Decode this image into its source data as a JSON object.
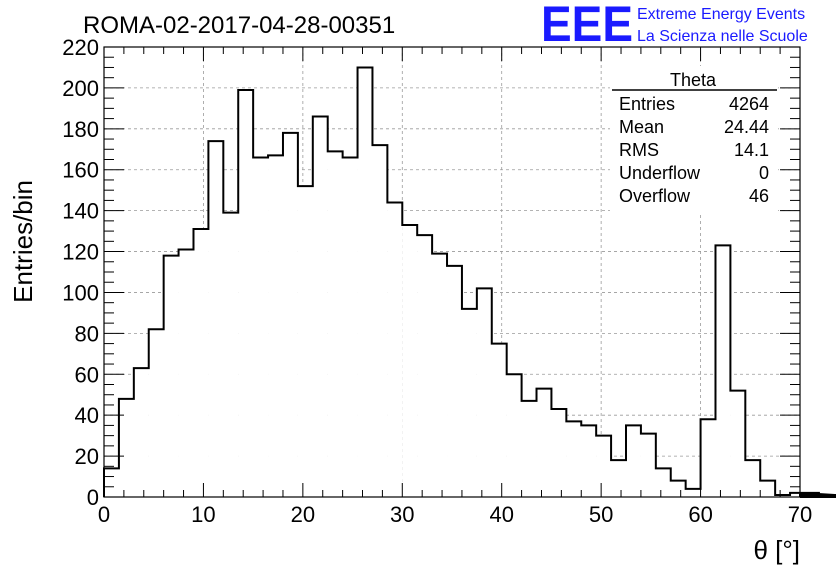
{
  "chart_data": {
    "type": "bar",
    "title": "ROMA-02-2017-04-28-00351",
    "xlabel": "θ [°]",
    "ylabel": "Entries/bin",
    "xlim": [
      0,
      70
    ],
    "ylim": [
      0,
      220
    ],
    "x_ticks": [
      "0",
      "10",
      "20",
      "30",
      "40",
      "50",
      "60",
      "70"
    ],
    "y_ticks": [
      "0",
      "20",
      "40",
      "60",
      "80",
      "100",
      "120",
      "140",
      "160",
      "180",
      "200",
      "220"
    ],
    "grid": true,
    "bin_width": 1.5,
    "bin_edges_start": 0,
    "values": [
      14,
      48,
      63,
      82,
      118,
      121,
      131,
      174,
      139,
      199,
      166,
      167,
      178,
      152,
      186,
      169,
      166,
      210,
      172,
      144,
      133,
      128,
      119,
      113,
      92,
      102,
      75,
      60,
      47,
      53,
      43,
      37,
      35,
      30,
      18,
      35,
      31,
      14,
      8,
      4,
      38,
      123,
      52,
      18,
      8,
      1,
      2,
      1,
      2,
      1,
      0,
      1
    ],
    "stats": {
      "name": "Theta",
      "rows": [
        {
          "label": "Entries",
          "value": "4264"
        },
        {
          "label": "Mean",
          "value": "24.44"
        },
        {
          "label": "RMS",
          "value": "14.1"
        },
        {
          "label": "Underflow",
          "value": "0"
        },
        {
          "label": "Overflow",
          "value": "46"
        }
      ]
    }
  },
  "logo": {
    "mark": "EEE",
    "line1": "Extreme Energy Events",
    "line2": "La Scienza nelle Scuole"
  },
  "colors": {
    "histogram": "#000000",
    "logo": "#1a1aff",
    "grid": "#9a9a9a"
  }
}
